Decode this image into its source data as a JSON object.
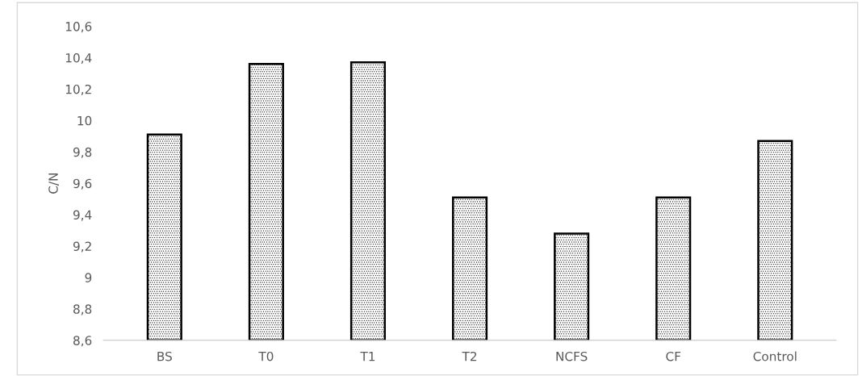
{
  "chart_data": {
    "type": "bar",
    "ylabel": "C/N",
    "categories": [
      "BS",
      "T0",
      "T1",
      "T2",
      "NCFS",
      "CF",
      "Control"
    ],
    "values": [
      9.91,
      10.36,
      10.37,
      9.51,
      9.28,
      9.51,
      9.87
    ],
    "ylim": [
      8.6,
      10.6
    ],
    "yticks": [
      {
        "value": 8.6,
        "label": "8,6"
      },
      {
        "value": 8.8,
        "label": "8,8"
      },
      9,
      {
        "value": 9.2,
        "label": "9,2"
      },
      {
        "value": 9.4,
        "label": "9,4"
      },
      {
        "value": 9.6,
        "label": "9,6"
      },
      {
        "value": 9.8,
        "label": "9,8"
      },
      10,
      {
        "value": 10.2,
        "label": "10,2"
      },
      {
        "value": 10.4,
        "label": "10,4"
      },
      {
        "value": 10.6,
        "label": "10,6"
      }
    ],
    "grid": false
  }
}
